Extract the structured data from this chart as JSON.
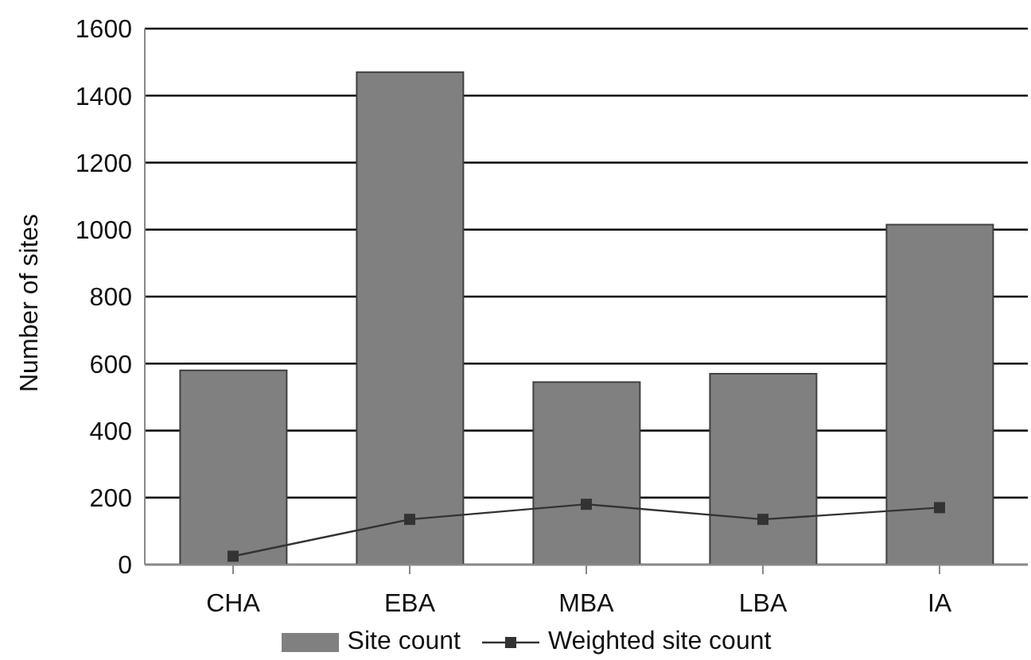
{
  "chart_data": {
    "type": "bar",
    "ylabel": "Number of sites",
    "categories": [
      "CHA",
      "EBA",
      "MBA",
      "LBA",
      "IA"
    ],
    "series": [
      {
        "name": "Site count",
        "color": "#808080",
        "values": [
          580,
          1470,
          545,
          570,
          1015
        ]
      },
      {
        "name": "Weighted site count",
        "type": "line",
        "color": "#333333",
        "marker": "square",
        "values": [
          25,
          135,
          180,
          135,
          170
        ]
      }
    ],
    "ylim": [
      0,
      1600
    ],
    "yticks": [
      0,
      200,
      400,
      600,
      800,
      1000,
      1200,
      1400,
      1600
    ],
    "grid": "y",
    "legend": "bottom"
  }
}
